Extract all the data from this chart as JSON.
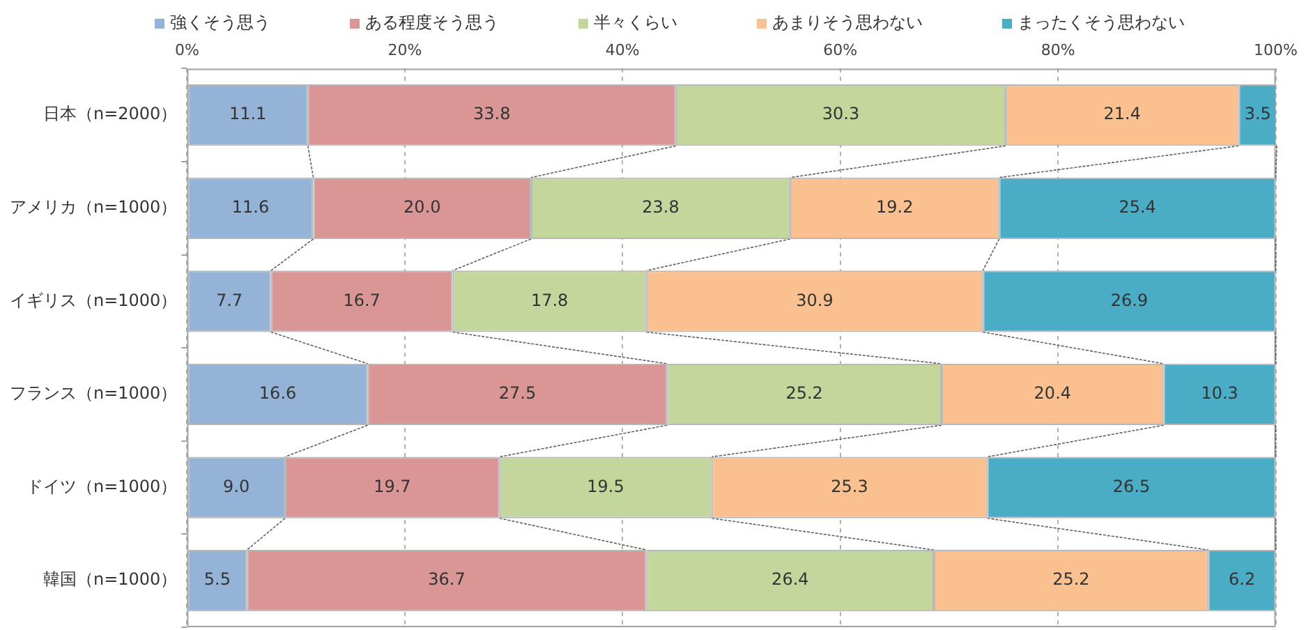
{
  "chart_data": {
    "type": "bar",
    "orientation": "horizontal",
    "stacked": true,
    "categories": [
      "日本（n=2000）",
      "アメリカ（n=1000）",
      "イギリス（n=1000）",
      "フランス（n=1000）",
      "ドイツ（n=1000）",
      "韓国（n=1000）"
    ],
    "series": [
      {
        "name": "強くそう思う",
        "color": "#95b3d7",
        "values": [
          11.1,
          11.6,
          7.7,
          16.6,
          9.0,
          5.5
        ],
        "value_labels": [
          "11.1",
          "11.6",
          "7.7",
          "16.6",
          "9.0",
          "5.5"
        ]
      },
      {
        "name": "ある程度そう思う",
        "color": "#d99694",
        "values": [
          33.8,
          20.0,
          16.7,
          27.5,
          19.7,
          36.7
        ],
        "value_labels": [
          "33.8",
          "20.0",
          "16.7",
          "27.5",
          "19.7",
          "36.7"
        ]
      },
      {
        "name": "半々くらい",
        "color": "#c3d69b",
        "values": [
          30.3,
          23.8,
          17.8,
          25.2,
          19.5,
          26.4
        ],
        "value_labels": [
          "30.3",
          "23.8",
          "17.8",
          "25.2",
          "19.5",
          "26.4"
        ]
      },
      {
        "name": "あまりそう思わない",
        "color": "#fac090",
        "values": [
          21.4,
          19.2,
          30.9,
          20.4,
          25.3,
          25.2
        ],
        "value_labels": [
          "21.4",
          "19.2",
          "30.9",
          "20.4",
          "25.3",
          "25.2"
        ]
      },
      {
        "name": "まったくそう思わない",
        "color": "#4bacc6",
        "values": [
          3.5,
          25.4,
          26.9,
          10.3,
          26.5,
          6.2
        ],
        "value_labels": [
          "3.5",
          "25.4",
          "26.9",
          "10.3",
          "26.5",
          "6.2"
        ]
      }
    ],
    "xlim": [
      0,
      100
    ],
    "xticks": [
      {
        "value": 0,
        "label": "0%"
      },
      {
        "value": 20,
        "label": "20%"
      },
      {
        "value": 40,
        "label": "40%"
      },
      {
        "value": 60,
        "label": "60%"
      },
      {
        "value": 80,
        "label": "80%"
      },
      {
        "value": 100,
        "label": "100%"
      }
    ],
    "grid": "x",
    "legend": "top"
  }
}
